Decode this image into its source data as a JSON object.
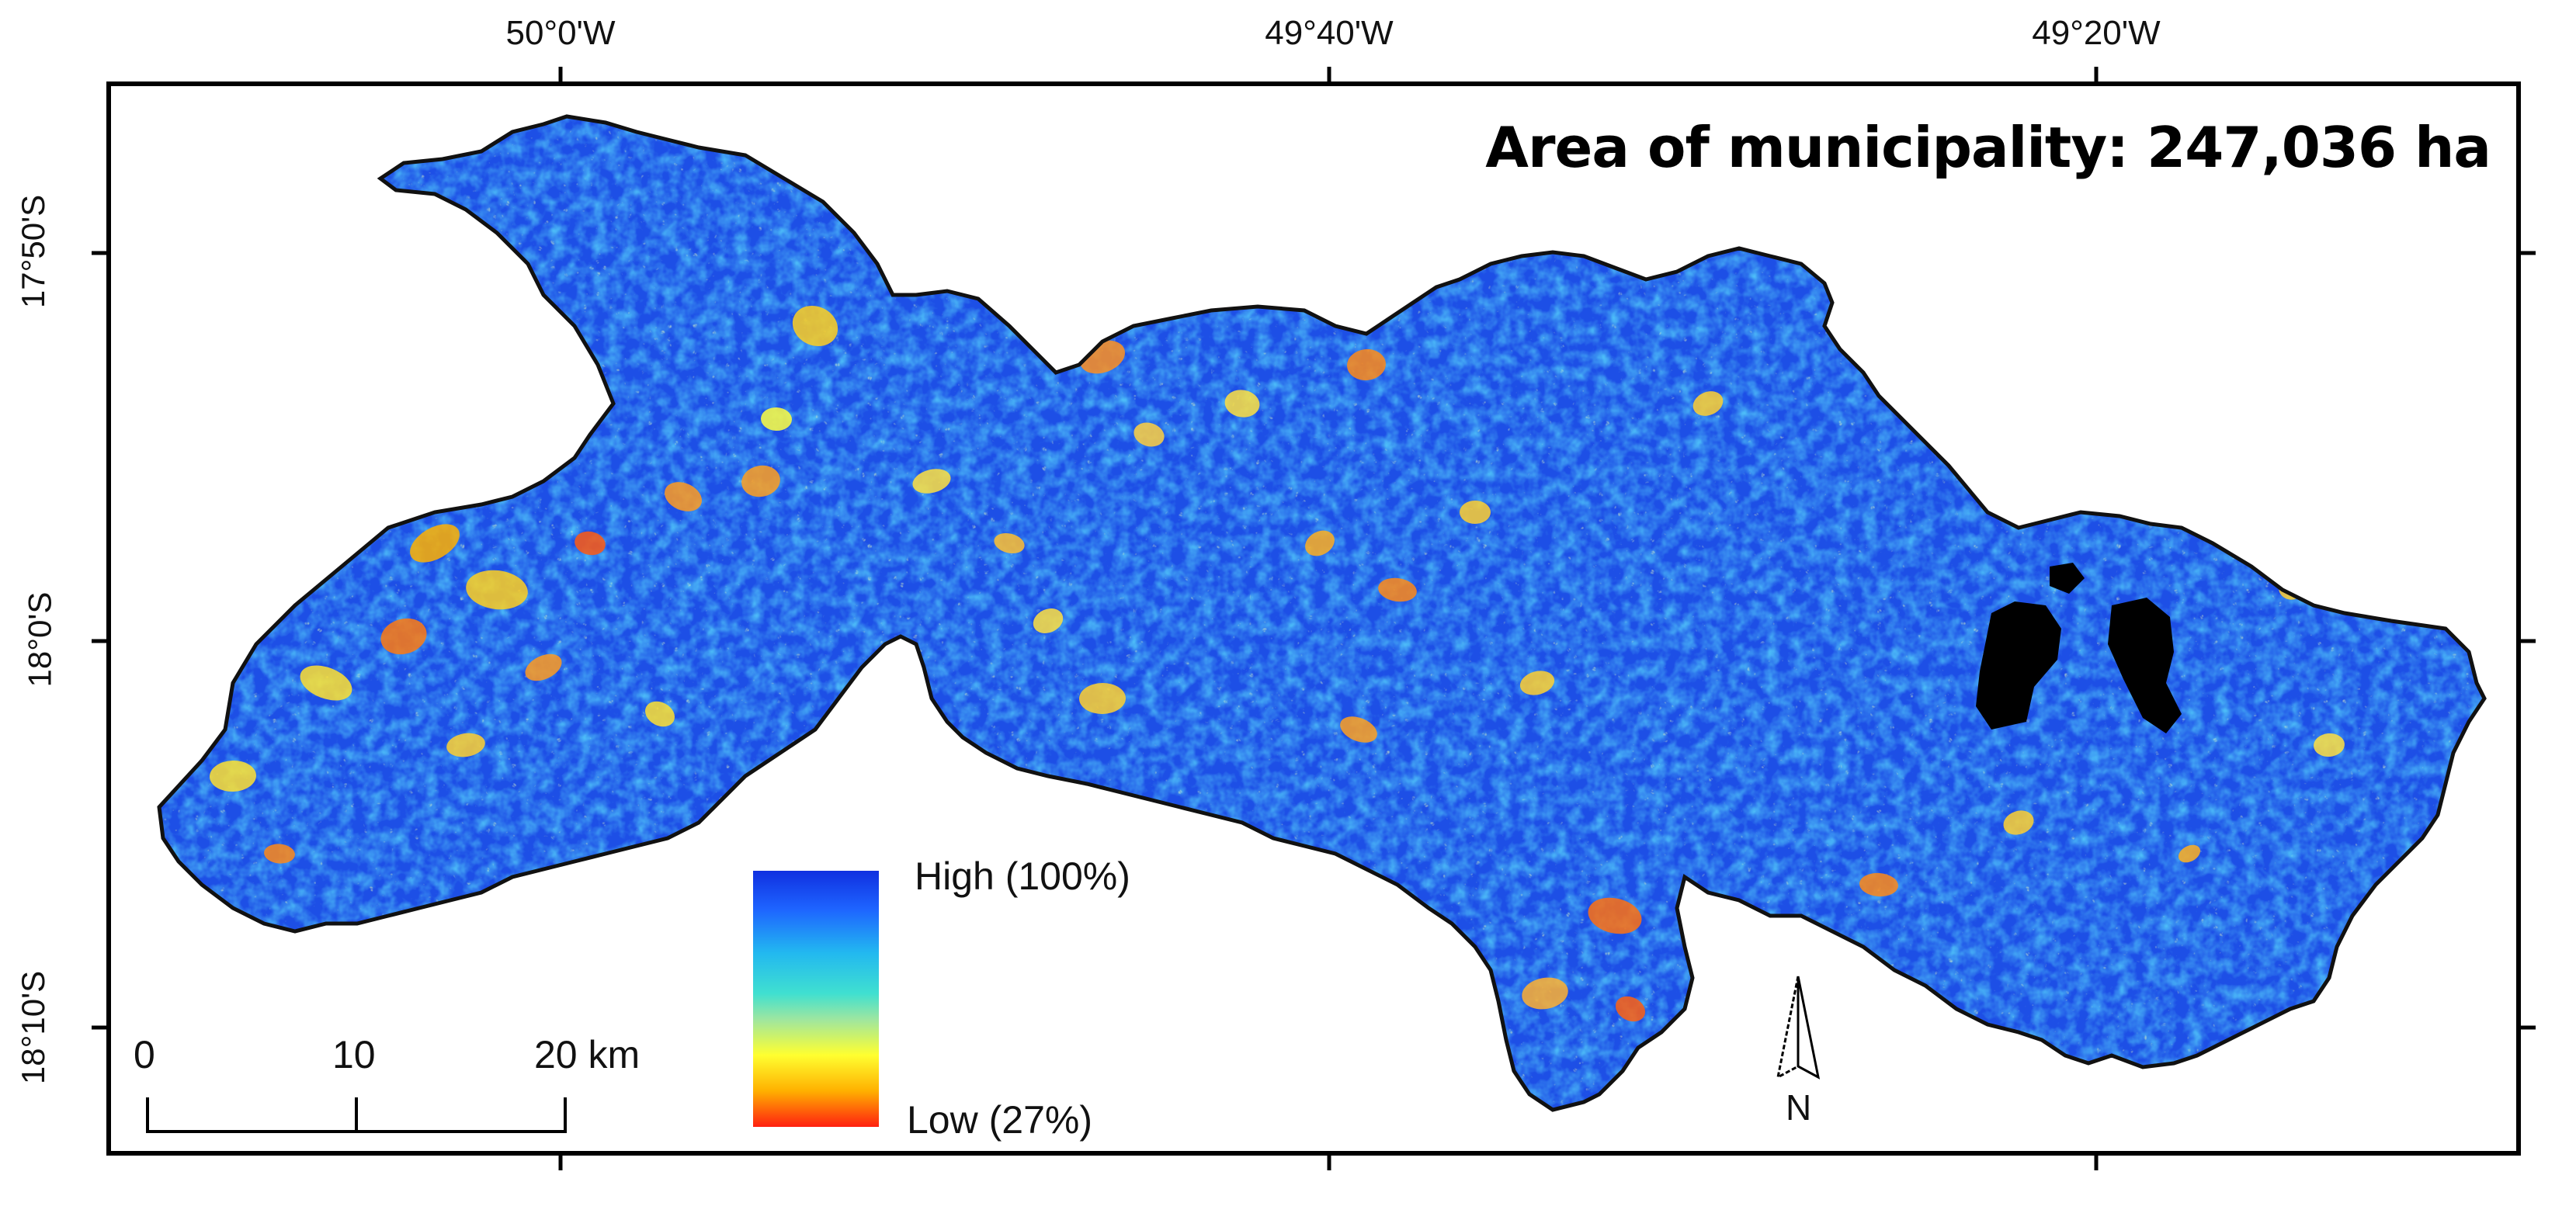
{
  "map": {
    "title": "Area of municipality: 247,036 ha",
    "longitude_labels": [
      "50°0'W",
      "49°40'W",
      "49°20'W"
    ],
    "latitude_labels": [
      "17°50'S",
      "18°0'S",
      "18°10'S"
    ],
    "legend": {
      "high_label": "High (100%)",
      "low_label": "Low (27%)",
      "colors": [
        "#1030e0",
        "#1e64ff",
        "#22b8f0",
        "#40e0d0",
        "#9ee6a0",
        "#ffff30",
        "#ffb000",
        "#ff2010"
      ]
    },
    "scale_bar": {
      "ticks": [
        "0",
        "10",
        "20 km"
      ]
    },
    "north_arrow": "N",
    "colors": {
      "high": "#1a3fe8",
      "mid": "#20b8f0",
      "low": "#ff3010",
      "no_data": "#000000"
    }
  }
}
